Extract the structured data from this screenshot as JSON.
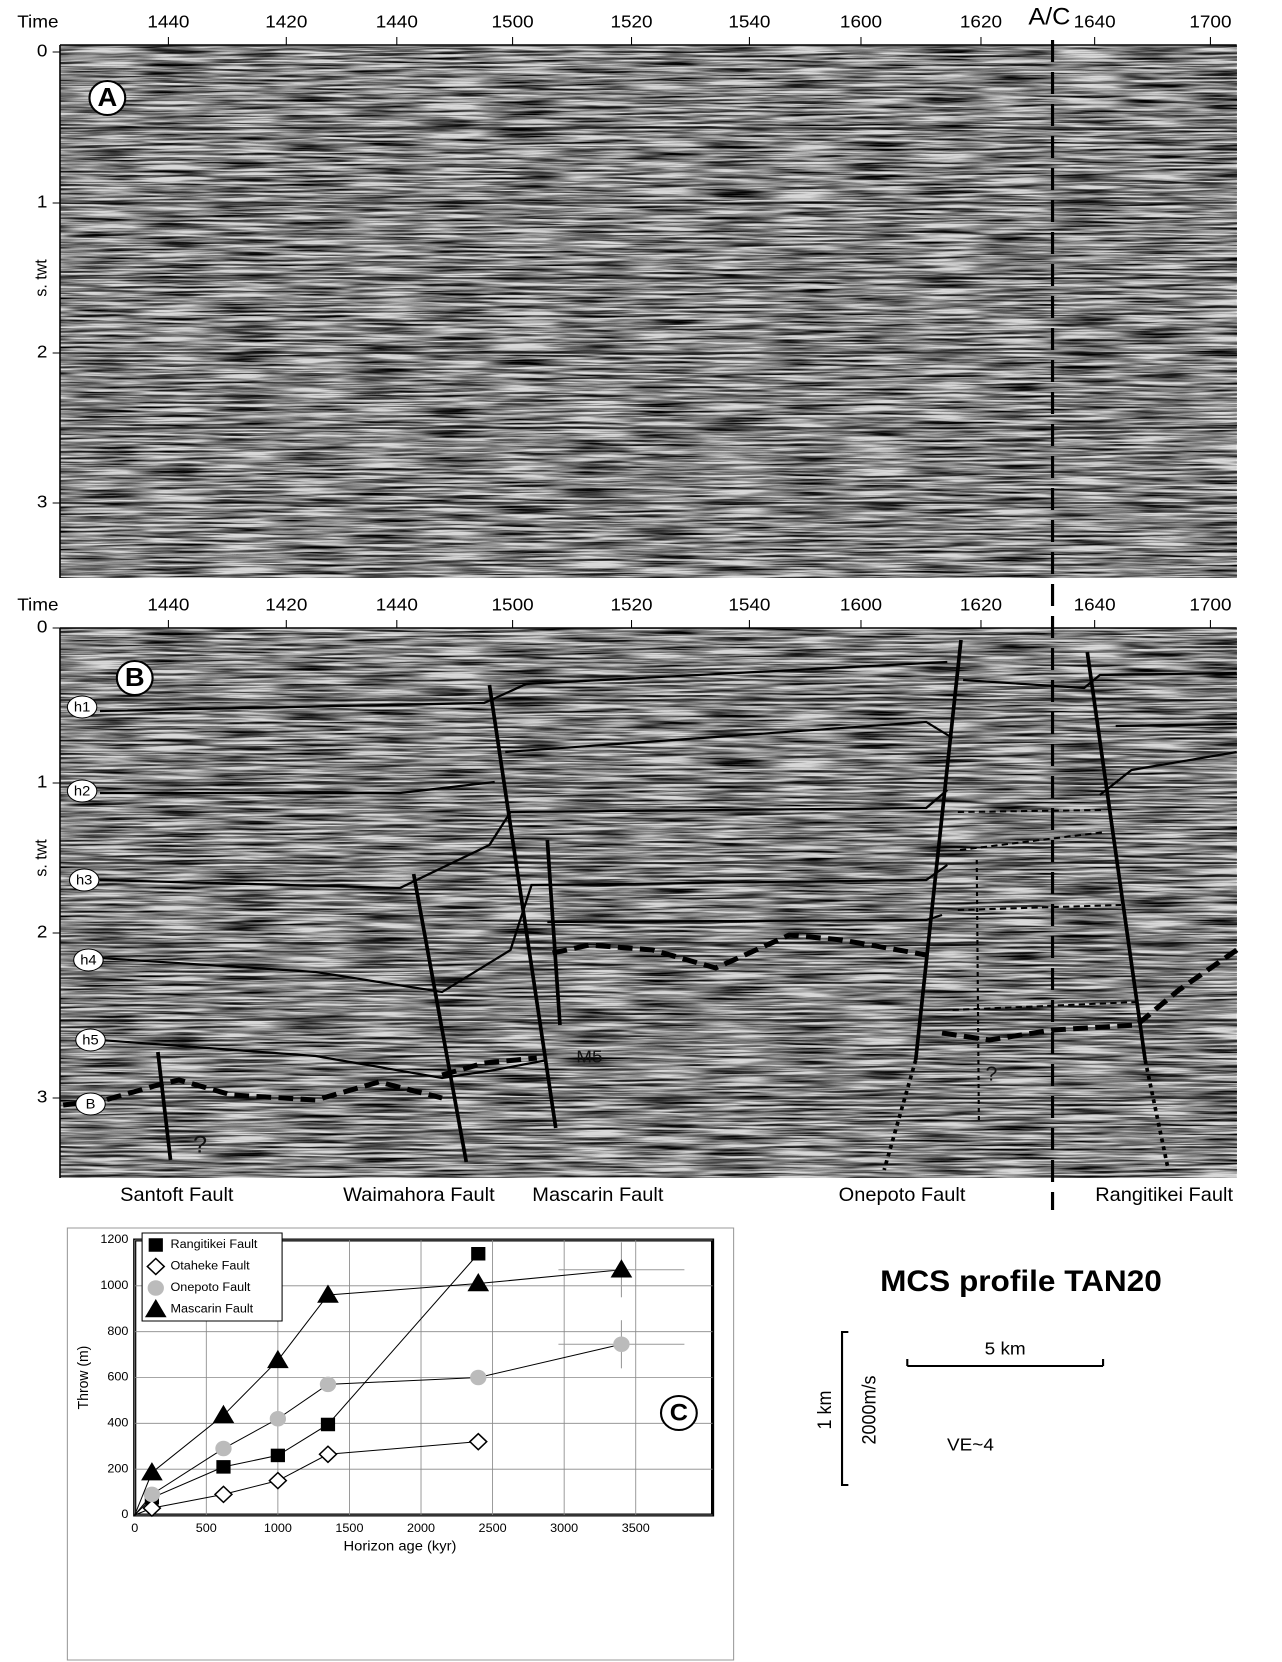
{
  "panel_a": {
    "label": "A",
    "x_axis_title": "Time",
    "x_labels": [
      "1440",
      "1420",
      "1440",
      "1500",
      "1520",
      "1540",
      "1600",
      "1620",
      "1640",
      "1700"
    ],
    "y_labels": [
      "0",
      "1",
      "2",
      "3"
    ],
    "y_axis_title": "s. twt",
    "divider_label": "A/C"
  },
  "panel_b": {
    "label": "B",
    "x_axis_title": "Time",
    "x_labels": [
      "1440",
      "1420",
      "1440",
      "1500",
      "1520",
      "1540",
      "1600",
      "1620",
      "1640",
      "1700"
    ],
    "y_labels": [
      "0",
      "1",
      "2",
      "3"
    ],
    "y_axis_title": "s. twt",
    "horizons": [
      "h1",
      "h2",
      "h3",
      "h4",
      "h5",
      "B"
    ],
    "annotations": [
      "M5",
      "?",
      "?"
    ],
    "faults": [
      "Santoft Fault",
      "Waimahora Fault",
      "Mascarin Fault",
      "Onepoto Fault",
      "Rangitikei Fault"
    ]
  },
  "chart_data": {
    "type": "line",
    "panel_label": "C",
    "x_label": "Horizon age (kyr)",
    "y_label": "Throw (m)",
    "xlim": [
      0,
      4000
    ],
    "ylim": [
      0,
      1200
    ],
    "xticks": [
      0,
      500,
      1000,
      1500,
      2000,
      2500,
      3000,
      3500
    ],
    "yticks": [
      0,
      200,
      400,
      600,
      800,
      1000,
      1200
    ],
    "grid": true,
    "legend": "upper left",
    "series": [
      {
        "name": "Rangitikei Fault",
        "color": "#000000",
        "marker": "square",
        "filled": true,
        "x": [
          0,
          120,
          620,
          1000,
          1350,
          2400
        ],
        "values": [
          0,
          75,
          210,
          260,
          395,
          1140
        ],
        "xerr": [
          null,
          null,
          null,
          null,
          null,
          null
        ],
        "yerr": [
          null,
          null,
          null,
          null,
          null,
          null
        ]
      },
      {
        "name": "Otaheke Fault",
        "color": "#000000",
        "marker": "diamond",
        "filled": false,
        "x": [
          0,
          120,
          620,
          1000,
          1350,
          2400
        ],
        "values": [
          0,
          30,
          90,
          150,
          265,
          320
        ],
        "xerr": [
          null,
          null,
          null,
          null,
          null,
          null
        ],
        "yerr": [
          null,
          null,
          null,
          null,
          null,
          null
        ]
      },
      {
        "name": "Onepoto Fault",
        "color": "#bbbbbb",
        "marker": "circle",
        "filled": true,
        "x": [
          0,
          120,
          620,
          1000,
          1350,
          2400,
          3400
        ],
        "values": [
          0,
          90,
          290,
          420,
          570,
          600,
          745
        ],
        "xerr": [
          null,
          null,
          null,
          null,
          null,
          null,
          440
        ],
        "yerr": [
          null,
          null,
          null,
          null,
          null,
          null,
          105
        ]
      },
      {
        "name": "Mascarin Fault",
        "color": "#000000",
        "marker": "triangle",
        "filled": true,
        "x": [
          0,
          120,
          620,
          1000,
          1350,
          2400,
          3400
        ],
        "values": [
          0,
          185,
          435,
          675,
          960,
          1010,
          1070
        ],
        "xerr": [
          null,
          null,
          null,
          null,
          null,
          null,
          440
        ],
        "yerr": [
          null,
          null,
          null,
          null,
          null,
          null,
          120
        ]
      }
    ]
  },
  "scale": {
    "title": "MCS  profile  TAN20",
    "horizontal": "5 km",
    "vertical": "1 km",
    "velocity": "2000m/s",
    "exaggeration": "VE~4"
  }
}
